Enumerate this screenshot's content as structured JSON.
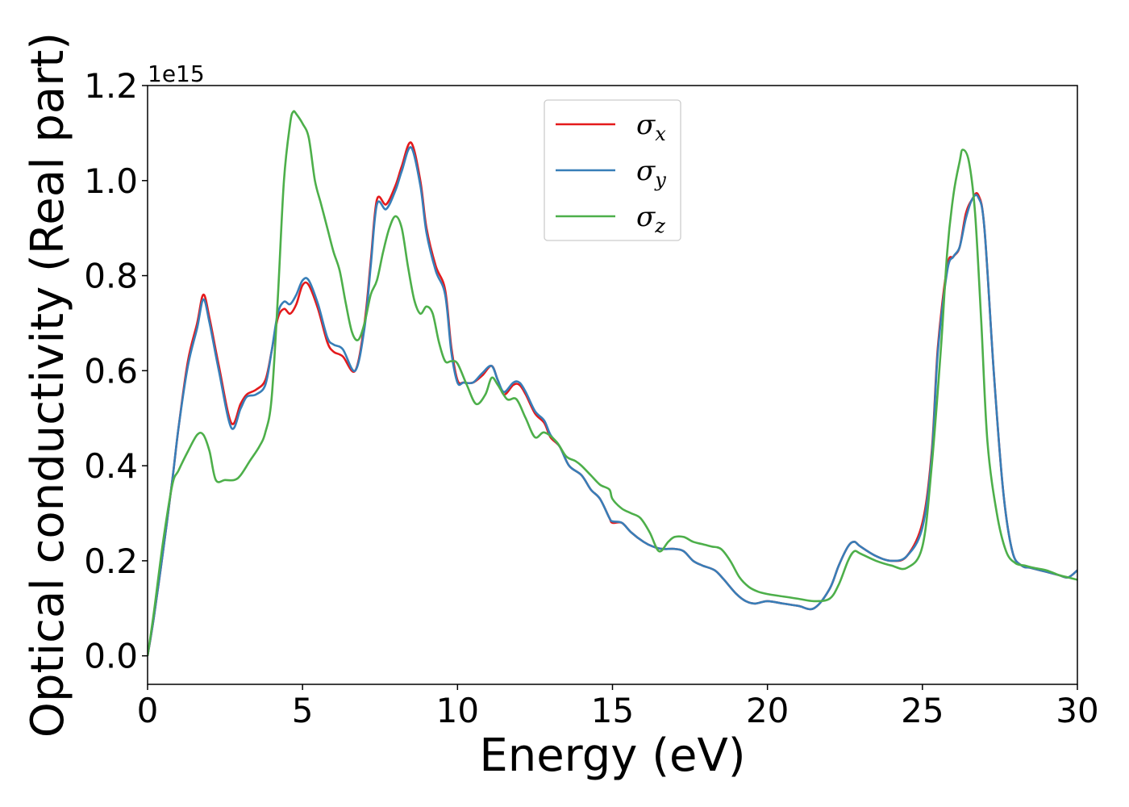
{
  "chart_data": {
    "type": "line",
    "xlabel": "Energy (eV)",
    "ylabel": "Optical conductivity (Real part)",
    "y_offset_label": "1e15",
    "xlim": [
      0,
      30
    ],
    "ylim": [
      -0.06,
      1.2
    ],
    "xticks": [
      0,
      5,
      10,
      15,
      20,
      25,
      30
    ],
    "yticks": [
      0.0,
      0.2,
      0.4,
      0.6,
      0.8,
      1.0,
      1.2
    ],
    "xtick_labels": [
      "0",
      "5",
      "10",
      "15",
      "20",
      "25",
      "30"
    ],
    "ytick_labels": [
      "0.0",
      "0.2",
      "0.4",
      "0.6",
      "0.8",
      "1.0",
      "1.2"
    ],
    "grid": false,
    "legend_position": "top-center",
    "series": [
      {
        "name": "σx",
        "symbol": "σ",
        "subscript": "x",
        "color": "#e41a1c",
        "x": [
          0,
          0.2,
          0.5,
          0.8,
          1.0,
          1.3,
          1.6,
          1.8,
          2.0,
          2.3,
          2.7,
          3.0,
          3.2,
          3.5,
          3.8,
          4.0,
          4.2,
          4.4,
          4.6,
          4.8,
          5.0,
          5.2,
          5.5,
          5.8,
          6.0,
          6.3,
          6.7,
          7.0,
          7.2,
          7.4,
          7.7,
          8.0,
          8.2,
          8.5,
          8.8,
          9.0,
          9.3,
          9.6,
          9.8,
          10.0,
          10.2,
          10.5,
          10.8,
          11.1,
          11.3,
          11.5,
          11.8,
          12.0,
          12.2,
          12.5,
          12.8,
          13.0,
          13.3,
          13.6,
          14.0,
          14.3,
          14.6,
          14.9,
          15.0,
          15.3,
          15.6,
          16.0,
          16.3,
          16.6,
          17.0,
          17.3,
          17.6,
          17.9,
          18.3,
          18.6,
          19.0,
          19.3,
          19.6,
          20.0,
          20.5,
          21.0,
          21.5,
          22.0,
          22.3,
          22.6,
          22.8,
          23.0,
          23.5,
          24.0,
          24.5,
          25.0,
          25.3,
          25.5,
          25.8,
          26.0,
          26.2,
          26.4,
          26.6,
          26.8,
          27.0,
          27.3,
          27.6,
          27.9,
          28.2,
          28.5,
          28.8,
          29.1,
          29.4,
          29.7,
          30.0
        ],
        "values": [
          0.0,
          0.08,
          0.22,
          0.37,
          0.48,
          0.62,
          0.7,
          0.76,
          0.71,
          0.61,
          0.49,
          0.53,
          0.55,
          0.56,
          0.58,
          0.64,
          0.71,
          0.73,
          0.72,
          0.74,
          0.78,
          0.78,
          0.73,
          0.66,
          0.64,
          0.63,
          0.6,
          0.7,
          0.83,
          0.96,
          0.95,
          0.99,
          1.03,
          1.08,
          1.0,
          0.9,
          0.82,
          0.77,
          0.65,
          0.58,
          0.575,
          0.575,
          0.59,
          0.61,
          0.58,
          0.55,
          0.57,
          0.57,
          0.55,
          0.51,
          0.49,
          0.46,
          0.44,
          0.4,
          0.38,
          0.35,
          0.33,
          0.29,
          0.28,
          0.28,
          0.26,
          0.24,
          0.23,
          0.225,
          0.225,
          0.22,
          0.2,
          0.19,
          0.18,
          0.16,
          0.13,
          0.115,
          0.11,
          0.115,
          0.11,
          0.105,
          0.1,
          0.14,
          0.19,
          0.23,
          0.24,
          0.23,
          0.21,
          0.2,
          0.21,
          0.28,
          0.43,
          0.65,
          0.82,
          0.84,
          0.86,
          0.93,
          0.96,
          0.97,
          0.9,
          0.6,
          0.35,
          0.22,
          0.19,
          0.185,
          0.18,
          0.175,
          0.17,
          0.165,
          0.18
        ]
      },
      {
        "name": "σy",
        "symbol": "σ",
        "subscript": "y",
        "color": "#377eb8",
        "x": [
          0,
          0.2,
          0.5,
          0.8,
          1.0,
          1.3,
          1.6,
          1.8,
          2.0,
          2.3,
          2.7,
          3.0,
          3.2,
          3.5,
          3.8,
          4.0,
          4.2,
          4.4,
          4.6,
          4.8,
          5.0,
          5.2,
          5.5,
          5.8,
          6.0,
          6.3,
          6.7,
          7.0,
          7.2,
          7.4,
          7.7,
          8.0,
          8.2,
          8.5,
          8.8,
          9.0,
          9.3,
          9.6,
          9.8,
          10.0,
          10.2,
          10.5,
          10.8,
          11.1,
          11.3,
          11.5,
          11.8,
          12.0,
          12.2,
          12.5,
          12.8,
          13.0,
          13.3,
          13.6,
          14.0,
          14.3,
          14.6,
          14.9,
          15.0,
          15.3,
          15.6,
          16.0,
          16.3,
          16.6,
          17.0,
          17.3,
          17.6,
          17.9,
          18.3,
          18.6,
          19.0,
          19.3,
          19.6,
          20.0,
          20.5,
          21.0,
          21.5,
          22.0,
          22.3,
          22.6,
          22.8,
          23.0,
          23.5,
          24.0,
          24.5,
          25.0,
          25.3,
          25.5,
          25.8,
          26.0,
          26.2,
          26.4,
          26.6,
          26.8,
          27.0,
          27.3,
          27.6,
          27.9,
          28.2,
          28.5,
          28.8,
          29.1,
          29.4,
          29.7,
          30.0
        ],
        "values": [
          0.0,
          0.08,
          0.22,
          0.37,
          0.48,
          0.61,
          0.69,
          0.75,
          0.7,
          0.6,
          0.48,
          0.52,
          0.545,
          0.55,
          0.57,
          0.64,
          0.72,
          0.745,
          0.74,
          0.76,
          0.79,
          0.79,
          0.74,
          0.67,
          0.655,
          0.645,
          0.6,
          0.69,
          0.82,
          0.95,
          0.94,
          0.98,
          1.02,
          1.07,
          0.99,
          0.89,
          0.81,
          0.76,
          0.64,
          0.575,
          0.575,
          0.575,
          0.595,
          0.61,
          0.58,
          0.555,
          0.575,
          0.575,
          0.555,
          0.515,
          0.495,
          0.465,
          0.44,
          0.4,
          0.38,
          0.35,
          0.33,
          0.29,
          0.283,
          0.28,
          0.26,
          0.24,
          0.23,
          0.225,
          0.225,
          0.22,
          0.2,
          0.19,
          0.18,
          0.16,
          0.13,
          0.115,
          0.11,
          0.115,
          0.11,
          0.105,
          0.1,
          0.14,
          0.19,
          0.23,
          0.24,
          0.23,
          0.21,
          0.2,
          0.21,
          0.27,
          0.42,
          0.64,
          0.81,
          0.84,
          0.86,
          0.92,
          0.96,
          0.965,
          0.9,
          0.6,
          0.35,
          0.22,
          0.19,
          0.185,
          0.18,
          0.175,
          0.17,
          0.165,
          0.18
        ]
      },
      {
        "name": "σz",
        "symbol": "σ",
        "subscript": "z",
        "color": "#4daf4a",
        "x": [
          0,
          0.2,
          0.5,
          0.8,
          1.0,
          1.3,
          1.6,
          1.8,
          2.0,
          2.2,
          2.5,
          2.8,
          3.0,
          3.3,
          3.6,
          3.8,
          4.0,
          4.2,
          4.4,
          4.6,
          4.7,
          4.8,
          5.0,
          5.2,
          5.4,
          5.6,
          5.8,
          6.0,
          6.2,
          6.4,
          6.6,
          6.8,
          7.0,
          7.2,
          7.4,
          7.6,
          7.8,
          8.0,
          8.2,
          8.4,
          8.6,
          8.8,
          9.0,
          9.2,
          9.4,
          9.6,
          9.8,
          10.0,
          10.3,
          10.6,
          10.9,
          11.1,
          11.3,
          11.6,
          11.9,
          12.2,
          12.5,
          12.8,
          13.2,
          13.5,
          13.8,
          14.0,
          14.3,
          14.6,
          14.9,
          15.0,
          15.3,
          15.6,
          15.9,
          16.2,
          16.5,
          16.8,
          17.0,
          17.3,
          17.6,
          17.9,
          18.2,
          18.5,
          18.8,
          19.1,
          19.4,
          19.7,
          20.0,
          20.5,
          21.0,
          21.5,
          22.0,
          22.3,
          22.6,
          22.8,
          23.0,
          23.5,
          24.0,
          24.5,
          25.0,
          25.3,
          25.6,
          25.8,
          26.0,
          26.2,
          26.3,
          26.5,
          26.7,
          26.9,
          27.1,
          27.4,
          27.7,
          28.0,
          28.3,
          28.6,
          29.0,
          29.4,
          29.7,
          30.0
        ],
        "values": [
          0.0,
          0.09,
          0.24,
          0.36,
          0.39,
          0.43,
          0.465,
          0.465,
          0.43,
          0.37,
          0.37,
          0.37,
          0.38,
          0.41,
          0.44,
          0.47,
          0.54,
          0.75,
          1.0,
          1.12,
          1.145,
          1.14,
          1.12,
          1.09,
          1.0,
          0.95,
          0.9,
          0.85,
          0.81,
          0.74,
          0.68,
          0.665,
          0.7,
          0.76,
          0.79,
          0.85,
          0.9,
          0.925,
          0.9,
          0.82,
          0.75,
          0.72,
          0.735,
          0.72,
          0.66,
          0.62,
          0.62,
          0.615,
          0.57,
          0.53,
          0.55,
          0.585,
          0.57,
          0.54,
          0.54,
          0.5,
          0.46,
          0.47,
          0.45,
          0.42,
          0.41,
          0.4,
          0.38,
          0.36,
          0.35,
          0.33,
          0.31,
          0.3,
          0.29,
          0.26,
          0.22,
          0.24,
          0.25,
          0.25,
          0.24,
          0.235,
          0.23,
          0.225,
          0.2,
          0.165,
          0.145,
          0.135,
          0.13,
          0.125,
          0.12,
          0.115,
          0.12,
          0.15,
          0.2,
          0.22,
          0.215,
          0.2,
          0.19,
          0.185,
          0.23,
          0.4,
          0.65,
          0.85,
          0.97,
          1.04,
          1.065,
          1.04,
          0.93,
          0.7,
          0.45,
          0.3,
          0.22,
          0.195,
          0.19,
          0.185,
          0.18,
          0.17,
          0.165,
          0.16
        ]
      }
    ]
  }
}
